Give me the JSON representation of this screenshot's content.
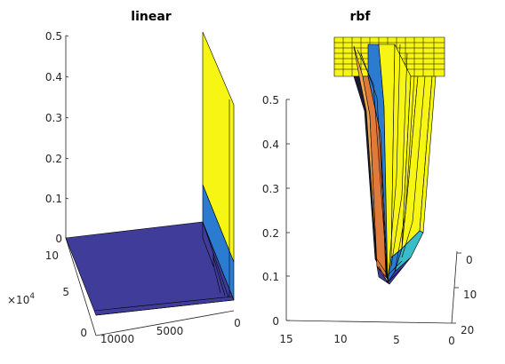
{
  "colors": {
    "axis": "#262626",
    "dark_blue": "#3f3d99",
    "mid_blue": "#2b7bd0",
    "yellow": "#f7f514",
    "cyan": "#38bcc8",
    "orange": "#f2a64b",
    "edge": "#000000"
  },
  "chart_data": [
    {
      "type": "surface",
      "title": "linear",
      "z_ticks": [
        "0",
        "0.1",
        "0.2",
        "0.3",
        "0.4",
        "0.5"
      ],
      "y_ticks": [
        "0",
        "5",
        "10"
      ],
      "y_exponent": "×10",
      "y_exponent_power": "4",
      "x_ticks": [
        "10000",
        "5000",
        "0"
      ],
      "zlim": [
        0,
        0.5
      ],
      "grid": false,
      "colormap": "parula"
    },
    {
      "type": "surface",
      "title": "rbf",
      "z_ticks": [
        "0",
        "0.1",
        "0.2",
        "0.3",
        "0.4",
        "0.5"
      ],
      "x_ticks": [
        "15",
        "10",
        "5",
        "0"
      ],
      "y_ticks": [
        "0",
        "10",
        "20"
      ],
      "zlim": [
        0,
        0.5
      ],
      "grid": false,
      "colormap": "parula"
    }
  ]
}
